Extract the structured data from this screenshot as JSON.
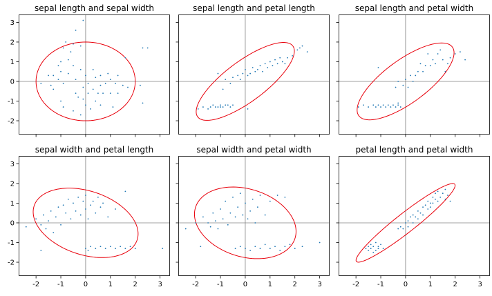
{
  "chart_data": {
    "type": "scatter",
    "xlim": [
      -2.7,
      3.4
    ],
    "ylim": [
      -2.7,
      3.4
    ],
    "x_ticks": [
      -2,
      -1,
      0,
      1,
      2,
      3
    ],
    "y_ticks": [
      -2,
      -1,
      0,
      1,
      2,
      3
    ],
    "sharey": true,
    "sharex": true,
    "grid": false,
    "reference_lines": {
      "x": 0,
      "y": 0,
      "color": "#808080"
    },
    "point_color": "#1f77b4",
    "ellipse_color": "#e8000b",
    "panels": [
      {
        "title": "sepal length and sepal width",
        "ellipse": {
          "center": [
            0,
            0
          ],
          "semi_axes": [
            2,
            2
          ],
          "angle_deg": 0
        },
        "points": [
          [
            -1.8,
            -0.1
          ],
          [
            -1.5,
            0.3
          ],
          [
            -1.4,
            -0.2
          ],
          [
            -1.3,
            -0.4
          ],
          [
            -1.3,
            0.3
          ],
          [
            -1.1,
            0.1
          ],
          [
            -1.1,
            0.8
          ],
          [
            -1.0,
            -1.0
          ],
          [
            -1.0,
            0.5
          ],
          [
            -1.0,
            1.0
          ],
          [
            -0.9,
            -1.3
          ],
          [
            -0.9,
            1.7
          ],
          [
            -0.9,
            -0.1
          ],
          [
            -0.8,
            2.0
          ],
          [
            -0.7,
            0.4
          ],
          [
            -0.7,
            1.1
          ],
          [
            -0.6,
            1.5
          ],
          [
            -0.5,
            0.8
          ],
          [
            -0.5,
            1.9
          ],
          [
            -0.5,
            -1.5
          ],
          [
            -0.4,
            -0.6
          ],
          [
            -0.4,
            0.1
          ],
          [
            -0.4,
            2.6
          ],
          [
            -0.3,
            -0.8
          ],
          [
            -0.2,
            0.6
          ],
          [
            -0.2,
            1.8
          ],
          [
            -0.2,
            -1.7
          ],
          [
            -0.1,
            -0.3
          ],
          [
            -0.1,
            3.1
          ],
          [
            -0.1,
            -0.9
          ],
          [
            0.0,
            -1.2
          ],
          [
            0.0,
            0.3
          ],
          [
            0.1,
            -0.6
          ],
          [
            0.1,
            -0.1
          ],
          [
            0.2,
            -1.4
          ],
          [
            0.3,
            0.6
          ],
          [
            0.3,
            -0.4
          ],
          [
            0.4,
            -1.0
          ],
          [
            0.4,
            0.2
          ],
          [
            0.5,
            -0.6
          ],
          [
            0.6,
            -0.2
          ],
          [
            0.6,
            0.3
          ],
          [
            0.6,
            -1.2
          ],
          [
            0.7,
            -0.6
          ],
          [
            0.8,
            -0.1
          ],
          [
            0.9,
            0.4
          ],
          [
            1.0,
            -0.6
          ],
          [
            1.0,
            0.1
          ],
          [
            1.1,
            -1.3
          ],
          [
            1.2,
            -0.1
          ],
          [
            1.3,
            0.3
          ],
          [
            1.3,
            -0.6
          ],
          [
            1.5,
            -0.2
          ],
          [
            1.6,
            1.2
          ],
          [
            1.7,
            -0.3
          ],
          [
            2.2,
            -0.2
          ],
          [
            2.3,
            -1.1
          ],
          [
            2.3,
            1.7
          ],
          [
            2.5,
            1.7
          ]
        ]
      },
      {
        "title": "sepal length and petal length",
        "ellipse": {
          "center": [
            0,
            0
          ],
          "semi_axes": [
            2.64,
            0.93
          ],
          "angle_deg": 45
        },
        "points": [
          [
            -1.9,
            -1.4
          ],
          [
            -1.7,
            -1.3
          ],
          [
            -1.5,
            -1.4
          ],
          [
            -1.4,
            -1.3
          ],
          [
            -1.3,
            -1.2
          ],
          [
            -1.2,
            -1.3
          ],
          [
            -1.1,
            -1.3
          ],
          [
            -1.0,
            -1.3
          ],
          [
            -1.0,
            -1.2
          ],
          [
            -0.9,
            -1.3
          ],
          [
            -0.8,
            -1.2
          ],
          [
            -0.7,
            -1.2
          ],
          [
            -0.6,
            -1.3
          ],
          [
            -0.5,
            -1.2
          ],
          [
            -0.9,
            -0.4
          ],
          [
            -1.1,
            0.4
          ],
          [
            -0.8,
            0.1
          ],
          [
            -0.6,
            -0.1
          ],
          [
            -0.5,
            0.2
          ],
          [
            -0.3,
            0.3
          ],
          [
            -0.2,
            0.1
          ],
          [
            -0.1,
            0.4
          ],
          [
            0.0,
            0.6
          ],
          [
            0.1,
            0.3
          ],
          [
            0.1,
            -1.4
          ],
          [
            0.2,
            0.4
          ],
          [
            0.3,
            0.7
          ],
          [
            0.4,
            0.5
          ],
          [
            0.5,
            0.6
          ],
          [
            0.6,
            0.8
          ],
          [
            0.7,
            0.5
          ],
          [
            0.8,
            0.9
          ],
          [
            0.9,
            0.7
          ],
          [
            1.0,
            1.0
          ],
          [
            1.1,
            0.8
          ],
          [
            1.2,
            1.1
          ],
          [
            1.3,
            0.9
          ],
          [
            1.4,
            1.2
          ],
          [
            1.5,
            1.0
          ],
          [
            1.6,
            0.9
          ],
          [
            1.7,
            1.2
          ],
          [
            1.9,
            1.3
          ],
          [
            2.1,
            1.6
          ],
          [
            2.2,
            1.7
          ],
          [
            2.3,
            1.8
          ],
          [
            2.5,
            1.5
          ]
        ]
      },
      {
        "title": "sepal length and petal width",
        "ellipse": {
          "center": [
            0,
            0
          ],
          "semi_axes": [
            2.58,
            0.99
          ],
          "angle_deg": 45
        },
        "points": [
          [
            -1.9,
            -1.3
          ],
          [
            -1.7,
            -1.2
          ],
          [
            -1.5,
            -1.3
          ],
          [
            -1.3,
            -1.2
          ],
          [
            -1.2,
            -1.3
          ],
          [
            -1.1,
            -1.2
          ],
          [
            -1.0,
            -1.3
          ],
          [
            -0.9,
            -1.2
          ],
          [
            -0.8,
            -1.3
          ],
          [
            -0.7,
            -1.2
          ],
          [
            -0.6,
            -1.3
          ],
          [
            -0.5,
            -1.2
          ],
          [
            -0.4,
            -1.3
          ],
          [
            -0.3,
            -1.2
          ],
          [
            -0.2,
            -1.3
          ],
          [
            -0.3,
            -1.1
          ],
          [
            -1.1,
            0.7
          ],
          [
            -0.4,
            -0.3
          ],
          [
            -0.3,
            0.0
          ],
          [
            -0.1,
            -0.2
          ],
          [
            0.0,
            0.1
          ],
          [
            0.1,
            -0.3
          ],
          [
            0.2,
            0.3
          ],
          [
            0.3,
            0.0
          ],
          [
            0.4,
            0.3
          ],
          [
            0.5,
            0.5
          ],
          [
            0.6,
            0.9
          ],
          [
            0.7,
            0.5
          ],
          [
            0.8,
            0.8
          ],
          [
            0.9,
            1.4
          ],
          [
            1.0,
            0.8
          ],
          [
            1.1,
            1.1
          ],
          [
            1.2,
            0.9
          ],
          [
            1.3,
            1.4
          ],
          [
            1.4,
            1.6
          ],
          [
            1.5,
            1.1
          ],
          [
            1.6,
            0.5
          ],
          [
            1.7,
            0.9
          ],
          [
            1.8,
            1.2
          ],
          [
            2.0,
            1.4
          ],
          [
            2.2,
            1.5
          ],
          [
            2.4,
            1.1
          ]
        ]
      },
      {
        "title": "sepal width and petal length",
        "ellipse": {
          "center": [
            0,
            0
          ],
          "semi_axes": [
            2.27,
            1.56
          ],
          "angle_deg": -30
        },
        "points": [
          [
            -2.4,
            -0.2
          ],
          [
            -2.0,
            0.2
          ],
          [
            -1.8,
            -0.1
          ],
          [
            -1.7,
            0.4
          ],
          [
            -1.6,
            -0.3
          ],
          [
            -1.5,
            0.1
          ],
          [
            -1.4,
            0.6
          ],
          [
            -1.3,
            -0.5
          ],
          [
            -1.2,
            0.3
          ],
          [
            -1.1,
            0.8
          ],
          [
            -1.0,
            -0.1
          ],
          [
            -0.9,
            0.9
          ],
          [
            -0.8,
            0.5
          ],
          [
            -0.7,
            1.2
          ],
          [
            -0.6,
            0.2
          ],
          [
            -0.5,
            1.0
          ],
          [
            -0.4,
            0.6
          ],
          [
            -0.3,
            1.3
          ],
          [
            -0.2,
            0.4
          ],
          [
            -0.1,
            1.1
          ],
          [
            0.0,
            0.7
          ],
          [
            0.0,
            1.4
          ],
          [
            0.1,
            0.2
          ],
          [
            0.2,
            0.9
          ],
          [
            0.3,
            1.1
          ],
          [
            0.4,
            0.5
          ],
          [
            0.5,
            1.3
          ],
          [
            0.6,
            0.8
          ],
          [
            0.7,
            1.0
          ],
          [
            0.9,
            0.3
          ],
          [
            1.2,
            0.7
          ],
          [
            1.6,
            1.6
          ],
          [
            0.0,
            -1.3
          ],
          [
            0.1,
            -1.4
          ],
          [
            0.2,
            -1.2
          ],
          [
            0.4,
            -1.3
          ],
          [
            0.6,
            -1.2
          ],
          [
            0.8,
            -1.3
          ],
          [
            1.0,
            -1.2
          ],
          [
            1.2,
            -1.3
          ],
          [
            1.4,
            -1.2
          ],
          [
            1.6,
            -1.3
          ],
          [
            1.8,
            -1.2
          ],
          [
            2.0,
            -1.3
          ],
          [
            3.1,
            -1.3
          ],
          [
            -1.8,
            -1.4
          ]
        ]
      },
      {
        "title": "sepal width and petal width",
        "ellipse": {
          "center": [
            0,
            0
          ],
          "semi_axes": [
            2.18,
            1.66
          ],
          "angle_deg": -32
        },
        "points": [
          [
            -2.4,
            -0.3
          ],
          [
            -2.0,
            0.0
          ],
          [
            -1.8,
            -1.2
          ],
          [
            -1.7,
            0.3
          ],
          [
            -1.5,
            0.0
          ],
          [
            -1.4,
            -0.2
          ],
          [
            -1.3,
            0.5
          ],
          [
            -1.2,
            0.1
          ],
          [
            -1.1,
            -0.3
          ],
          [
            -1.0,
            0.7
          ],
          [
            -0.9,
            0.2
          ],
          [
            -0.8,
            1.1
          ],
          [
            -0.7,
            -0.1
          ],
          [
            -0.6,
            0.5
          ],
          [
            -0.5,
            1.3
          ],
          [
            -0.4,
            0.3
          ],
          [
            -0.3,
            0.8
          ],
          [
            -0.2,
            1.5
          ],
          [
            -0.1,
            0.4
          ],
          [
            0.0,
            1.0
          ],
          [
            0.1,
            0.2
          ],
          [
            0.2,
            0.6
          ],
          [
            0.3,
            1.2
          ],
          [
            0.4,
            0.0
          ],
          [
            0.5,
            0.8
          ],
          [
            0.6,
            1.4
          ],
          [
            0.8,
            0.4
          ],
          [
            1.0,
            1.1
          ],
          [
            1.3,
            1.4
          ],
          [
            1.6,
            1.3
          ],
          [
            -0.4,
            -1.3
          ],
          [
            -0.2,
            -1.2
          ],
          [
            0.0,
            -1.3
          ],
          [
            0.2,
            -1.4
          ],
          [
            0.4,
            -1.2
          ],
          [
            0.6,
            -1.3
          ],
          [
            0.8,
            -1.1
          ],
          [
            1.0,
            -1.3
          ],
          [
            1.2,
            -1.2
          ],
          [
            1.4,
            -1.4
          ],
          [
            1.6,
            -1.2
          ],
          [
            1.8,
            -1.1
          ],
          [
            2.0,
            -1.3
          ],
          [
            2.3,
            -1.2
          ],
          [
            3.0,
            -1.0
          ]
        ]
      },
      {
        "title": "petal length and petal width",
        "ellipse": {
          "center": [
            0,
            0
          ],
          "semi_axes": [
            2.79,
            0.44
          ],
          "angle_deg": 45
        },
        "points": [
          [
            -1.6,
            -1.3
          ],
          [
            -1.5,
            -1.4
          ],
          [
            -1.5,
            -1.2
          ],
          [
            -1.4,
            -1.1
          ],
          [
            -1.4,
            -1.3
          ],
          [
            -1.3,
            -1.5
          ],
          [
            -1.3,
            -1.2
          ],
          [
            -1.2,
            -1.4
          ],
          [
            -1.2,
            -1.0
          ],
          [
            -1.1,
            -1.3
          ],
          [
            -1.1,
            -1.2
          ],
          [
            -1.0,
            -1.1
          ],
          [
            -0.9,
            -1.3
          ],
          [
            -0.3,
            -0.3
          ],
          [
            -0.2,
            -0.2
          ],
          [
            -0.1,
            -0.3
          ],
          [
            0.0,
            0.0
          ],
          [
            0.1,
            0.1
          ],
          [
            0.1,
            -0.2
          ],
          [
            0.2,
            0.3
          ],
          [
            0.3,
            0.0
          ],
          [
            0.3,
            0.4
          ],
          [
            0.4,
            0.3
          ],
          [
            0.5,
            0.6
          ],
          [
            0.5,
            0.2
          ],
          [
            0.6,
            0.5
          ],
          [
            0.7,
            0.8
          ],
          [
            0.7,
            0.4
          ],
          [
            0.8,
            0.9
          ],
          [
            0.9,
            0.7
          ],
          [
            0.9,
            1.1
          ],
          [
            1.0,
            1.0
          ],
          [
            1.0,
            0.8
          ],
          [
            1.1,
            1.3
          ],
          [
            1.1,
            1.0
          ],
          [
            1.2,
            1.2
          ],
          [
            1.2,
            1.5
          ],
          [
            1.3,
            1.1
          ],
          [
            1.3,
            1.6
          ],
          [
            1.4,
            1.3
          ],
          [
            1.5,
            1.5
          ],
          [
            1.6,
            1.7
          ],
          [
            1.7,
            1.4
          ],
          [
            1.8,
            1.1
          ],
          [
            1.6,
            1.2
          ]
        ]
      }
    ]
  }
}
